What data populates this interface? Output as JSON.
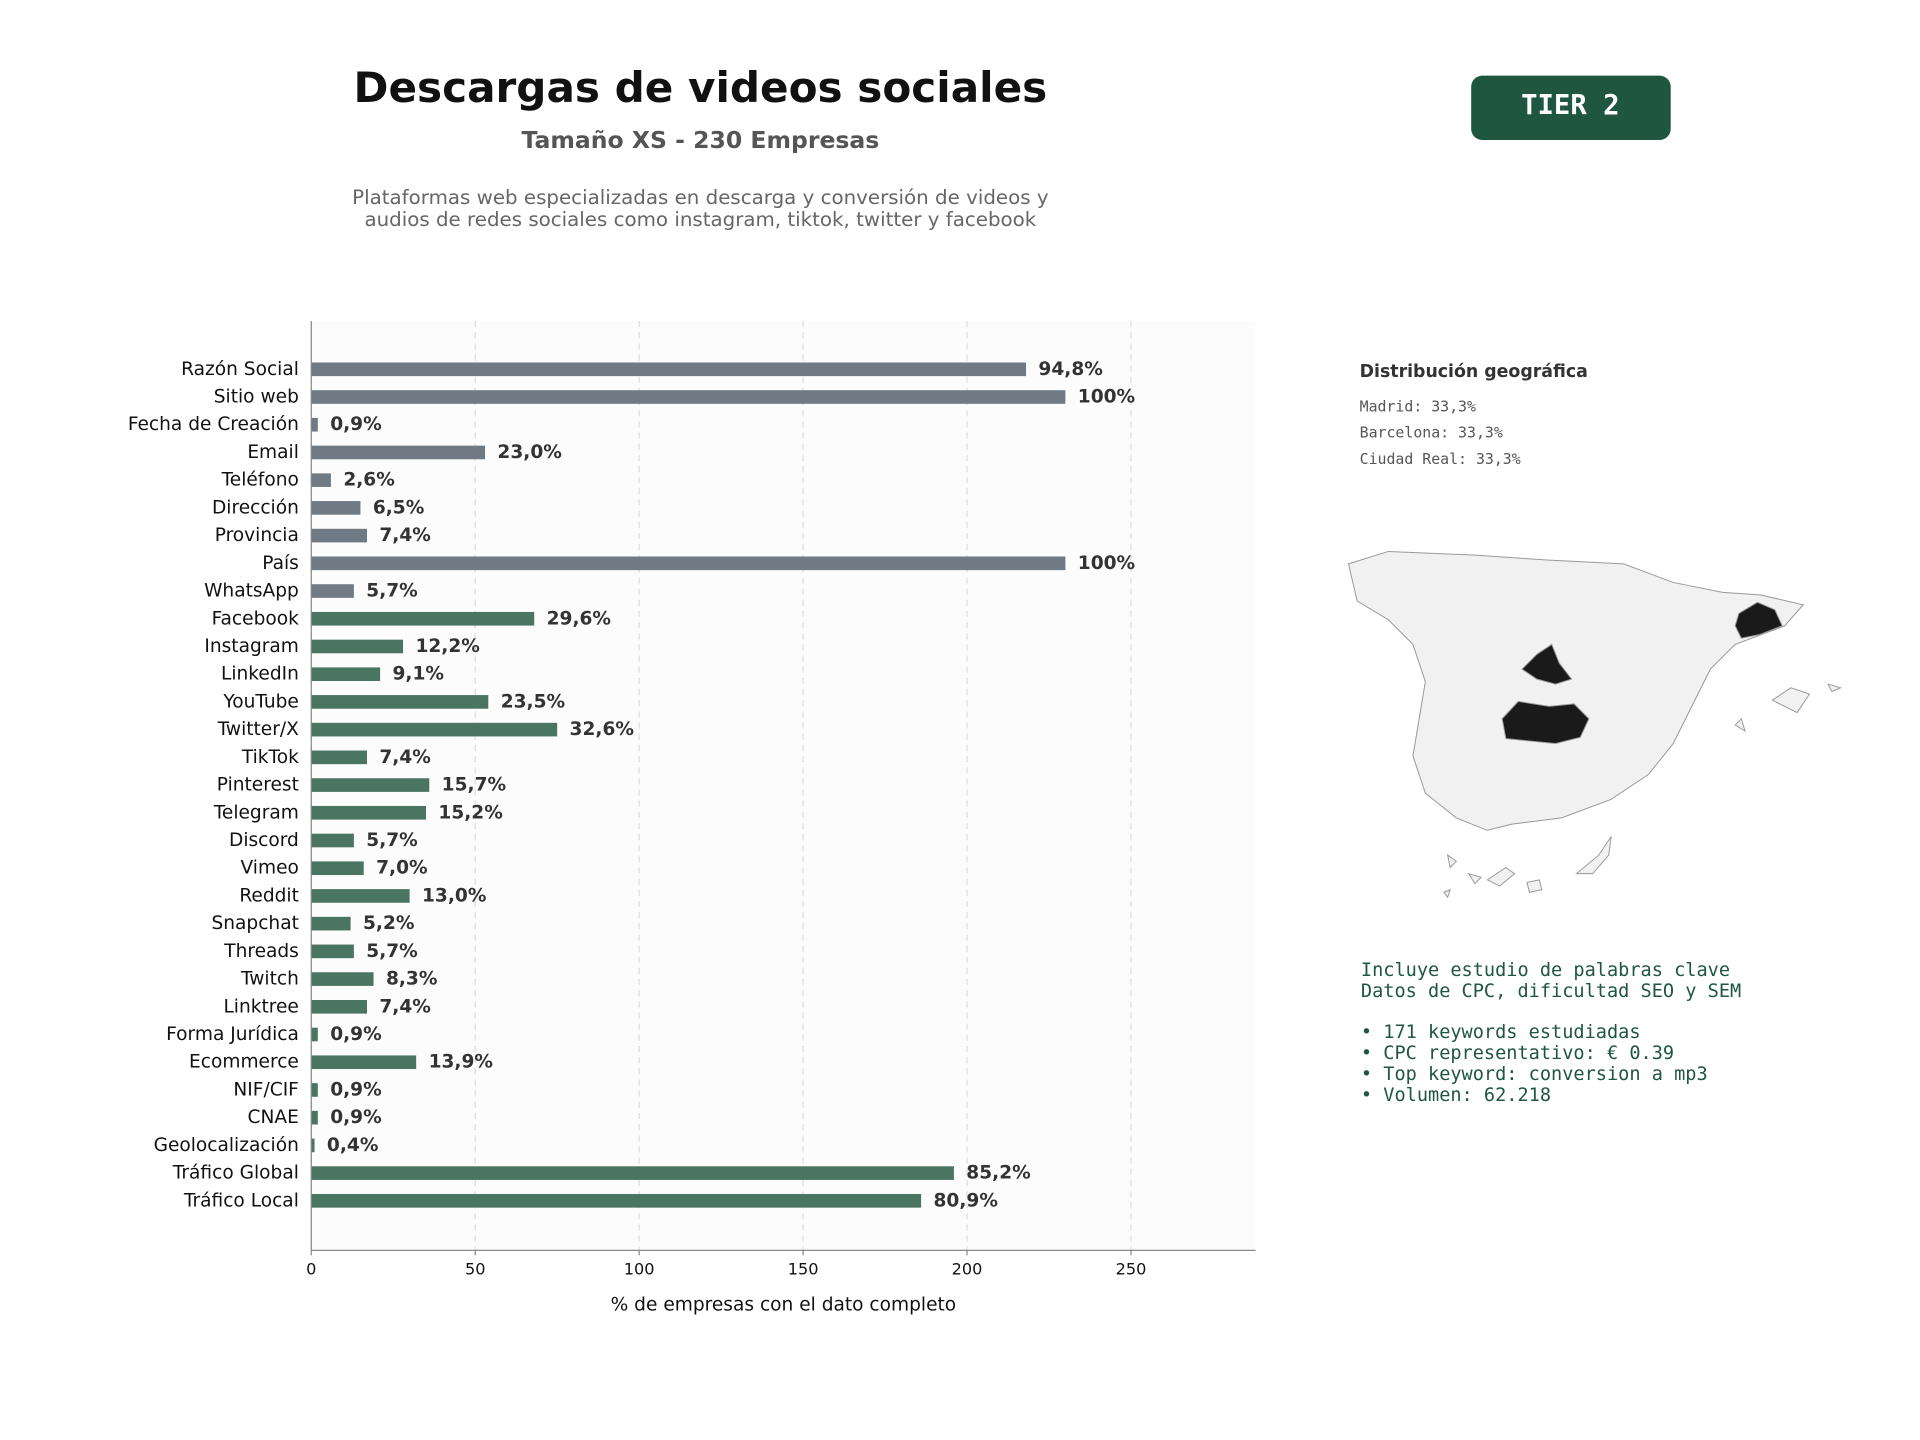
{
  "chart_data": {
    "type": "barh",
    "title": "Descargas de videos sociales",
    "subtitle": "Tamaño XS - 230 Empresas",
    "description_lines": [
      "Plataformas web especializadas en descarga y conversión de videos y",
      "audios de redes sociales como instagram, tiktok, twitter y facebook"
    ],
    "badge": "TIER 2",
    "xlabel": "% de empresas con el dato completo",
    "categories": [
      "Razón Social",
      "Sitio web",
      "Fecha de Creación",
      "Email",
      "Teléfono",
      "Dirección",
      "Provincia",
      "País",
      "WhatsApp",
      "Facebook",
      "Instagram",
      "LinkedIn",
      "YouTube",
      "Twitter/X",
      "TikTok",
      "Pinterest",
      "Telegram",
      "Discord",
      "Vimeo",
      "Reddit",
      "Snapchat",
      "Threads",
      "Twitch",
      "Linktree",
      "Forma Jurídica",
      "Ecommerce",
      "NIF/CIF",
      "CNAE",
      "Geolocalización",
      "Tráfico Global",
      "Tráfico Local"
    ],
    "values": [
      218,
      230,
      2,
      53,
      6,
      15,
      17,
      230,
      13,
      68,
      28,
      21,
      54,
      75,
      17,
      36,
      35,
      13,
      16,
      30,
      12,
      13,
      19,
      17,
      2,
      32,
      2,
      2,
      1,
      196,
      186
    ],
    "value_labels": [
      "94,8%",
      "100%",
      "0,9%",
      "23,0%",
      "2,6%",
      "6,5%",
      "7,4%",
      "100%",
      "5,7%",
      "29,6%",
      "12,2%",
      "9,1%",
      "23,5%",
      "32,6%",
      "7,4%",
      "15,7%",
      "15,2%",
      "5,7%",
      "7,0%",
      "13,0%",
      "5,2%",
      "5,7%",
      "8,3%",
      "7,4%",
      "0,9%",
      "13,9%",
      "0,9%",
      "0,9%",
      "0,4%",
      "85,2%",
      "80,9%"
    ],
    "colors": [
      "#6f7a85",
      "#6f7a85",
      "#6f7a85",
      "#6f7a85",
      "#6f7a85",
      "#6f7a85",
      "#6f7a85",
      "#6f7a85",
      "#6f7a85",
      "#4a7562",
      "#4a7562",
      "#4a7562",
      "#4a7562",
      "#4a7562",
      "#4a7562",
      "#4a7562",
      "#4a7562",
      "#4a7562",
      "#4a7562",
      "#4a7562",
      "#4a7562",
      "#4a7562",
      "#4a7562",
      "#4a7562",
      "#4a7562",
      "#4a7562",
      "#4a7562",
      "#4a7562",
      "#4a7562",
      "#4a7562",
      "#4a7562"
    ],
    "xlim": [
      0,
      288
    ],
    "xticks": [
      0,
      50,
      100,
      150,
      200,
      250
    ],
    "grid": true
  },
  "geo": {
    "title": "Distribución geográfica",
    "lines": [
      "Madrid: 33,3%",
      "Barcelona: 33,3%",
      "Ciudad Real: 33,3%"
    ]
  },
  "keywords": {
    "intro": [
      "Incluye estudio de palabras clave",
      "Datos de CPC, dificultad SEO y SEM"
    ],
    "bullets": [
      "• 171 keywords estudiadas",
      "• CPC representativo: € 0.39",
      "• Top keyword: conversion a mp3",
      "• Volumen: 62.218"
    ]
  }
}
